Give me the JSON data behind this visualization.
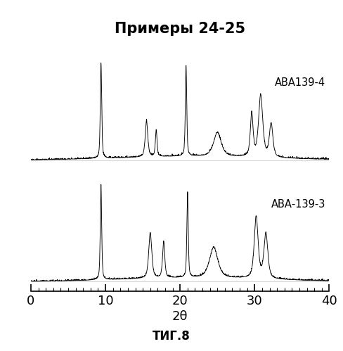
{
  "title": "Примеры 24-25",
  "xlabel": "2θ",
  "figure_label": "ΤИГ.8",
  "xmin": 0,
  "xmax": 40,
  "label_top": "АВА139-4",
  "label_bottom": "АВА-139-3",
  "background_color": "#ffffff",
  "line_color": "#000000",
  "tick_label_fontsize": 13,
  "title_fontsize": 15,
  "peaks_top": [
    9.4,
    15.5,
    16.8,
    20.8,
    25.0,
    29.6,
    30.8,
    32.2
  ],
  "widths_top": [
    0.1,
    0.18,
    0.12,
    0.1,
    0.55,
    0.2,
    0.3,
    0.25
  ],
  "heights_top": [
    1.0,
    0.38,
    0.28,
    0.95,
    0.25,
    0.45,
    0.65,
    0.35
  ],
  "peaks_bottom": [
    9.4,
    16.0,
    17.8,
    21.0,
    24.5,
    30.2,
    31.5
  ],
  "widths_bottom": [
    0.1,
    0.22,
    0.16,
    0.1,
    0.6,
    0.28,
    0.28
  ],
  "heights_bottom": [
    1.0,
    0.48,
    0.38,
    0.9,
    0.32,
    0.65,
    0.48
  ]
}
